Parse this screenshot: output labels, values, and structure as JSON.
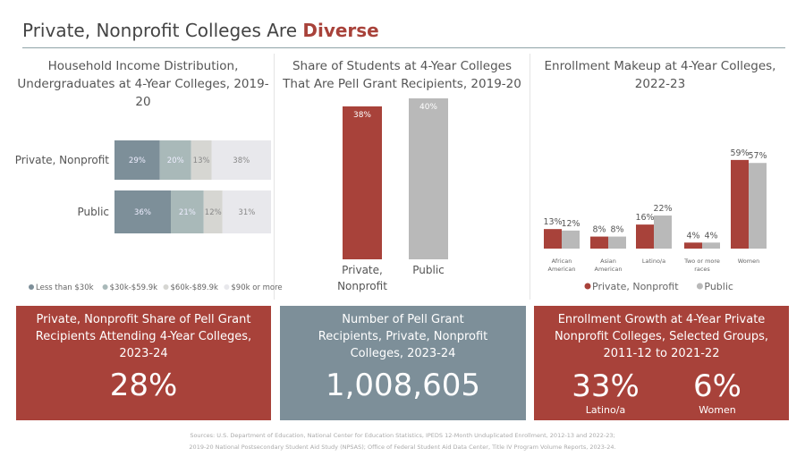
{
  "title": {
    "prefix": "Private, Nonprofit Colleges Are",
    "highlight": "Diverse"
  },
  "colors": {
    "red": "#a8423a",
    "gray": "#b9b9b9",
    "slate": "#7d8f99"
  },
  "chart_data": [
    {
      "type": "bar",
      "orientation": "horizontal-stacked",
      "title": "Household Income Distribution, Undergraduates at 4-Year Colleges, 2019-20",
      "categories": [
        "Private, Nonprofit",
        "Public"
      ],
      "series": [
        {
          "name": "Less than $30k",
          "values": [
            29,
            36
          ],
          "color": "#7d8f99"
        },
        {
          "name": "$30k-$59.9k",
          "values": [
            20,
            21
          ],
          "color": "#a9b9b9"
        },
        {
          "name": "$60k-$89.9k",
          "values": [
            13,
            12
          ],
          "color": "#d6d6d2"
        },
        {
          "name": "$90k or more",
          "values": [
            38,
            31
          ],
          "color": "#e8e8ec"
        }
      ],
      "legend": "bottom"
    },
    {
      "type": "bar",
      "title": "Share of Students at 4-Year Colleges That Are Pell Grant Recipients, 2019-20",
      "categories": [
        "Private, Nonprofit",
        "Public"
      ],
      "values": [
        38,
        40
      ],
      "labels": [
        "38%",
        "40%"
      ],
      "colors": [
        "#a8423a",
        "#b9b9b9"
      ]
    },
    {
      "type": "bar",
      "title": "Enrollment Makeup at 4-Year Colleges, 2022-23",
      "categories": [
        "African American",
        "Asian American",
        "Latino/a",
        "Two or more races",
        "Women"
      ],
      "series": [
        {
          "name": "Private, Nonprofit",
          "values": [
            13,
            8,
            16,
            4,
            59
          ],
          "color": "#a8423a"
        },
        {
          "name": "Public",
          "values": [
            12,
            8,
            22,
            4,
            57
          ],
          "color": "#b9b9b9"
        }
      ],
      "legend": "bottom"
    }
  ],
  "boxes": [
    {
      "heading": "Private, Nonprofit Share of Pell Grant Recipients Attending 4-Year Colleges, 2023-24",
      "value": "28%"
    },
    {
      "heading": "Number of Pell Grant Recipients, Private, Nonprofit Colleges, 2023-24",
      "value": "1,008,605"
    },
    {
      "heading": "Enrollment Growth at 4-Year Private Nonprofit Colleges, Selected Groups, 2011-12 to 2021-22",
      "stats": [
        {
          "value": "33%",
          "label": "Latino/a"
        },
        {
          "value": "6%",
          "label": "Women"
        }
      ]
    }
  ],
  "sources": [
    "Sources: U.S. Department of Education, National Center for Education Statistics, IPEDS 12-Month Unduplicated Enrollment, 2012-13 and 2022-23;",
    "2019-20 National Postsecondary Student Aid Study (NPSAS); Office of Federal Student Aid Data Center, Title IV Program Volume Reports, 2023-24."
  ]
}
